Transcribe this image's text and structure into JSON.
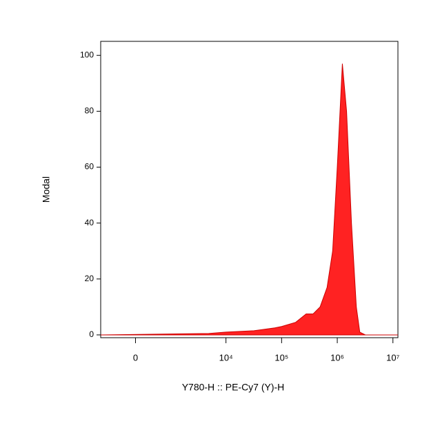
{
  "chart_data": {
    "type": "histogram-area",
    "x_label": "Y780-H :: PE-Cy7 (Y)-H",
    "y_label": "Modal",
    "xscale": "biexponential",
    "x": [
      -944,
      4900,
      10000,
      31800,
      75500,
      100000,
      179000,
      276000,
      368000,
      491000,
      656000,
      826000,
      1000000,
      1235000,
      1470000,
      1800000,
      2200000,
      2540000,
      3200000,
      12300000
    ],
    "values": [
      0,
      0.5,
      1,
      1.5,
      2.5,
      3,
      4.5,
      7.5,
      7.5,
      10,
      17,
      30,
      60,
      97,
      80,
      40,
      10,
      1,
      0,
      0
    ],
    "color": "#ff2222",
    "xlim": [
      -944,
      12300000
    ],
    "xticks": [
      0,
      {
        "value": 10000,
        "label": "10⁴"
      },
      {
        "value": 100000,
        "label": "10⁵"
      },
      {
        "value": 1000000,
        "label": "10⁶"
      },
      {
        "value": 10000000,
        "label": "10⁷"
      }
    ],
    "ylim": [
      -1,
      105
    ],
    "yticks": [
      0,
      20,
      40,
      60,
      80,
      100
    ]
  }
}
